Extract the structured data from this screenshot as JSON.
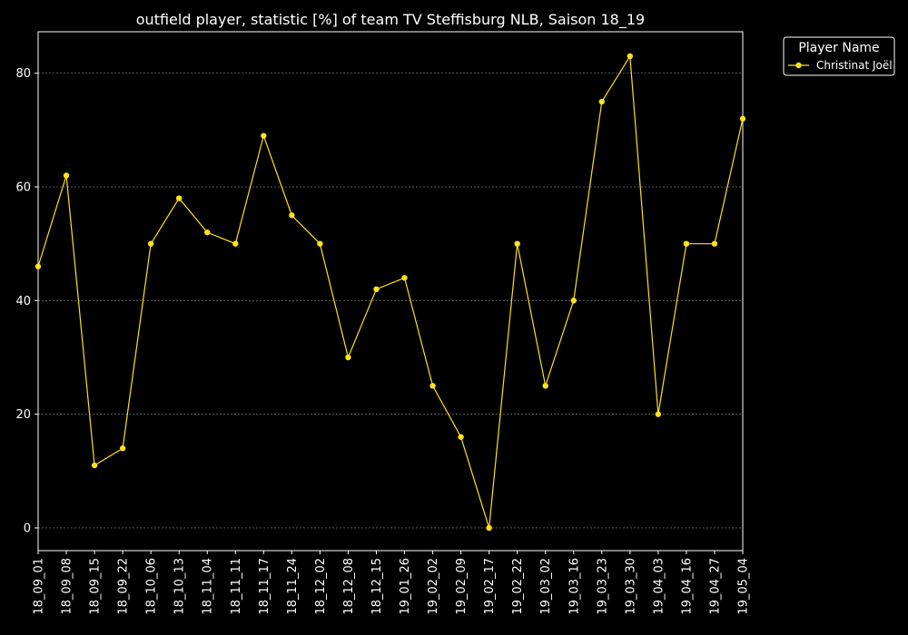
{
  "chart_data": {
    "type": "line",
    "title": "outfield player, statistic [%] of team TV Steffisburg NLB, Saison 18_19",
    "xlabel": "",
    "ylabel": "",
    "categories": [
      "18_09_01",
      "18_09_08",
      "18_09_15",
      "18_09_22",
      "18_10_06",
      "18_10_13",
      "18_11_04",
      "18_11_11",
      "18_11_17",
      "18_11_24",
      "18_12_02",
      "18_12_08",
      "18_12_15",
      "19_01_26",
      "19_02_02",
      "19_02_09",
      "19_02_17",
      "19_02_22",
      "19_03_02",
      "19_03_16",
      "19_03_23",
      "19_03_30",
      "19_04_03",
      "19_04_16",
      "19_04_27",
      "19_05_04"
    ],
    "series": [
      {
        "name": "Christinat Joël",
        "color": "#ffe11a",
        "values": [
          46,
          62,
          11,
          14,
          50,
          58,
          52,
          50,
          69,
          55,
          50,
          30,
          42,
          44,
          25,
          16,
          0,
          50,
          25,
          40,
          75,
          83,
          20,
          50,
          50,
          72
        ]
      }
    ],
    "yticks": [
      0,
      20,
      40,
      60,
      80
    ],
    "ylim": [
      -4,
      87.3
    ],
    "grid": true,
    "legend": {
      "title": "Player Name",
      "position": "top-right"
    },
    "colors": {
      "background": "#000000",
      "text": "#ffffff",
      "grid": "#888888"
    }
  }
}
